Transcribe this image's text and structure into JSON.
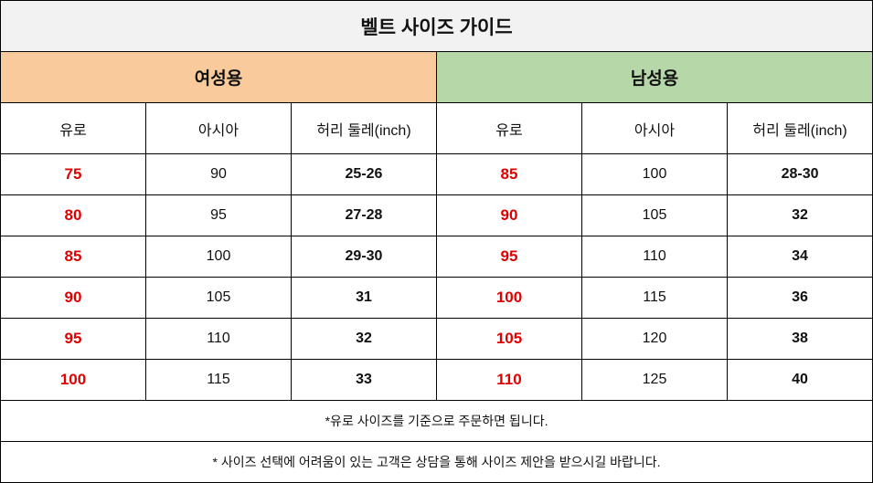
{
  "title": "벨트 사이즈 가이드",
  "groups": [
    "여성용",
    "남성용"
  ],
  "headers": [
    "유로",
    "아시아",
    "허리 둘레(inch)",
    "유로",
    "아시아",
    "허리 둘레(inch)"
  ],
  "rows": [
    [
      75,
      90,
      "25-26",
      85,
      100,
      "28-30"
    ],
    [
      80,
      95,
      "27-28",
      90,
      105,
      32
    ],
    [
      85,
      100,
      "29-30",
      95,
      110,
      34
    ],
    [
      90,
      105,
      31,
      100,
      115,
      36
    ],
    [
      95,
      110,
      32,
      105,
      120,
      38
    ],
    [
      100,
      115,
      33,
      110,
      125,
      40
    ]
  ],
  "notes": [
    "*유로 사이즈를 기준으로 주문하면 됩니다.",
    "* 사이즈 선택에 어려움이 있는 고객은 상담을 통해 사이즈 제안을 받으시길 바랍니다."
  ]
}
